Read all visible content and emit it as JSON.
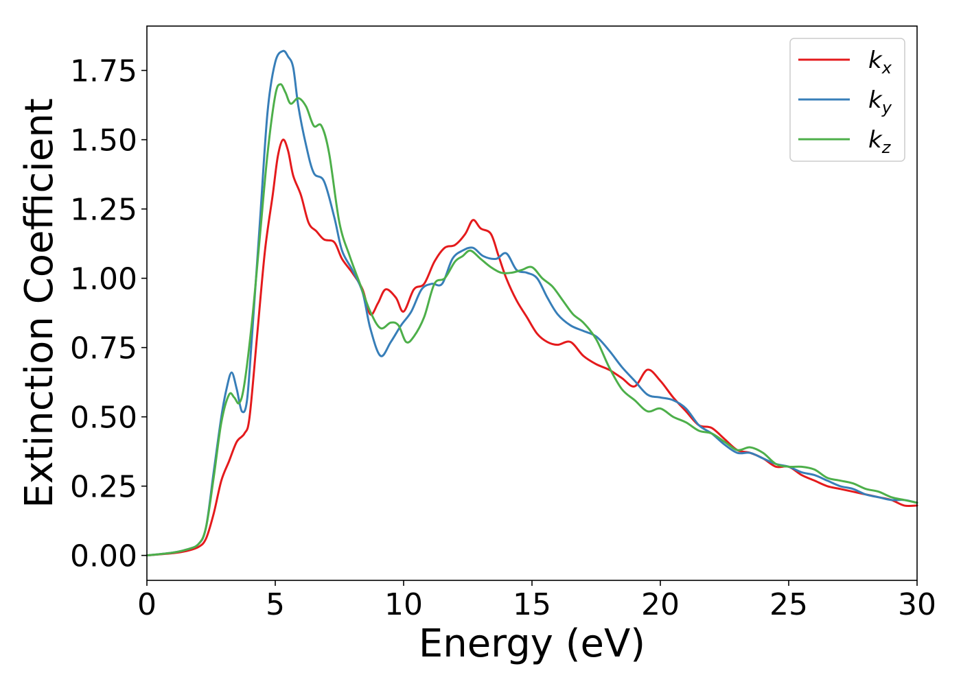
{
  "chart_data": {
    "type": "line",
    "title": "",
    "xlabel": "Energy (eV)",
    "ylabel": "Extinction Coefficient",
    "xlim": [
      0,
      30
    ],
    "ylim": [
      -0.09,
      1.91
    ],
    "xticks": [
      0,
      5,
      10,
      15,
      20,
      25,
      30
    ],
    "yticks": [
      0.0,
      0.25,
      0.5,
      0.75,
      1.0,
      1.25,
      1.5,
      1.75
    ],
    "grid": false,
    "legend_position": "top-right",
    "series": [
      {
        "name_base": "k",
        "name_sub": "x",
        "color": "#e41a1c",
        "points": [
          [
            0,
            0.0
          ],
          [
            1,
            0.008
          ],
          [
            1.5,
            0.015
          ],
          [
            2,
            0.03
          ],
          [
            2.3,
            0.06
          ],
          [
            2.6,
            0.15
          ],
          [
            2.9,
            0.27
          ],
          [
            3.2,
            0.34
          ],
          [
            3.5,
            0.41
          ],
          [
            3.8,
            0.44
          ],
          [
            4.0,
            0.5
          ],
          [
            4.3,
            0.8
          ],
          [
            4.6,
            1.1
          ],
          [
            4.9,
            1.3
          ],
          [
            5.1,
            1.44
          ],
          [
            5.3,
            1.5
          ],
          [
            5.5,
            1.46
          ],
          [
            5.7,
            1.37
          ],
          [
            6.0,
            1.3
          ],
          [
            6.3,
            1.2
          ],
          [
            6.6,
            1.17
          ],
          [
            6.9,
            1.14
          ],
          [
            7.3,
            1.13
          ],
          [
            7.6,
            1.07
          ],
          [
            8.0,
            1.02
          ],
          [
            8.4,
            0.96
          ],
          [
            8.7,
            0.87
          ],
          [
            9.0,
            0.91
          ],
          [
            9.3,
            0.96
          ],
          [
            9.7,
            0.93
          ],
          [
            10.0,
            0.88
          ],
          [
            10.4,
            0.96
          ],
          [
            10.8,
            0.98
          ],
          [
            11.2,
            1.06
          ],
          [
            11.6,
            1.11
          ],
          [
            12.0,
            1.12
          ],
          [
            12.4,
            1.16
          ],
          [
            12.7,
            1.21
          ],
          [
            13.0,
            1.18
          ],
          [
            13.4,
            1.16
          ],
          [
            13.7,
            1.08
          ],
          [
            14.0,
            1.0
          ],
          [
            14.4,
            0.92
          ],
          [
            14.8,
            0.86
          ],
          [
            15.2,
            0.8
          ],
          [
            15.6,
            0.77
          ],
          [
            16.0,
            0.76
          ],
          [
            16.5,
            0.77
          ],
          [
            17.0,
            0.72
          ],
          [
            17.5,
            0.69
          ],
          [
            18.0,
            0.67
          ],
          [
            18.5,
            0.64
          ],
          [
            19.0,
            0.61
          ],
          [
            19.5,
            0.67
          ],
          [
            20.0,
            0.63
          ],
          [
            20.5,
            0.57
          ],
          [
            21.0,
            0.52
          ],
          [
            21.5,
            0.47
          ],
          [
            22.0,
            0.46
          ],
          [
            22.5,
            0.42
          ],
          [
            23.0,
            0.38
          ],
          [
            23.5,
            0.37
          ],
          [
            24.0,
            0.35
          ],
          [
            24.5,
            0.32
          ],
          [
            25.0,
            0.32
          ],
          [
            25.5,
            0.29
          ],
          [
            26.0,
            0.27
          ],
          [
            26.5,
            0.25
          ],
          [
            27.0,
            0.24
          ],
          [
            27.5,
            0.23
          ],
          [
            28.0,
            0.22
          ],
          [
            28.5,
            0.21
          ],
          [
            29.0,
            0.2
          ],
          [
            29.5,
            0.18
          ],
          [
            30.0,
            0.18
          ]
        ]
      },
      {
        "name_base": "k",
        "name_sub": "y",
        "color": "#377eb8",
        "points": [
          [
            0,
            0.0
          ],
          [
            1,
            0.01
          ],
          [
            1.5,
            0.02
          ],
          [
            2,
            0.04
          ],
          [
            2.3,
            0.1
          ],
          [
            2.6,
            0.3
          ],
          [
            2.9,
            0.5
          ],
          [
            3.1,
            0.6
          ],
          [
            3.3,
            0.66
          ],
          [
            3.5,
            0.6
          ],
          [
            3.7,
            0.52
          ],
          [
            3.9,
            0.56
          ],
          [
            4.1,
            0.8
          ],
          [
            4.4,
            1.2
          ],
          [
            4.7,
            1.6
          ],
          [
            5.0,
            1.78
          ],
          [
            5.3,
            1.82
          ],
          [
            5.5,
            1.8
          ],
          [
            5.7,
            1.76
          ],
          [
            5.9,
            1.62
          ],
          [
            6.2,
            1.48
          ],
          [
            6.5,
            1.38
          ],
          [
            6.9,
            1.35
          ],
          [
            7.3,
            1.22
          ],
          [
            7.6,
            1.1
          ],
          [
            8.0,
            1.03
          ],
          [
            8.4,
            0.95
          ],
          [
            8.7,
            0.82
          ],
          [
            9.1,
            0.72
          ],
          [
            9.5,
            0.77
          ],
          [
            9.9,
            0.83
          ],
          [
            10.3,
            0.88
          ],
          [
            10.7,
            0.96
          ],
          [
            11.1,
            0.98
          ],
          [
            11.5,
            0.98
          ],
          [
            11.9,
            1.07
          ],
          [
            12.3,
            1.1
          ],
          [
            12.7,
            1.11
          ],
          [
            13.1,
            1.08
          ],
          [
            13.6,
            1.07
          ],
          [
            14.0,
            1.09
          ],
          [
            14.4,
            1.03
          ],
          [
            14.8,
            1.02
          ],
          [
            15.2,
            1.0
          ],
          [
            15.6,
            0.93
          ],
          [
            16.0,
            0.87
          ],
          [
            16.5,
            0.83
          ],
          [
            17.0,
            0.81
          ],
          [
            17.5,
            0.79
          ],
          [
            18.0,
            0.74
          ],
          [
            18.5,
            0.68
          ],
          [
            19.0,
            0.63
          ],
          [
            19.5,
            0.58
          ],
          [
            20.0,
            0.57
          ],
          [
            20.5,
            0.56
          ],
          [
            21.0,
            0.53
          ],
          [
            21.5,
            0.47
          ],
          [
            22.0,
            0.44
          ],
          [
            22.5,
            0.4
          ],
          [
            23.0,
            0.37
          ],
          [
            23.5,
            0.37
          ],
          [
            24.0,
            0.35
          ],
          [
            24.5,
            0.33
          ],
          [
            25.0,
            0.32
          ],
          [
            25.5,
            0.3
          ],
          [
            26.0,
            0.29
          ],
          [
            26.5,
            0.27
          ],
          [
            27.0,
            0.25
          ],
          [
            27.5,
            0.24
          ],
          [
            28.0,
            0.22
          ],
          [
            28.5,
            0.21
          ],
          [
            29.0,
            0.2
          ],
          [
            29.5,
            0.2
          ],
          [
            30.0,
            0.19
          ]
        ]
      },
      {
        "name_base": "k",
        "name_sub": "z",
        "color": "#4daf4a",
        "points": [
          [
            0,
            0.0
          ],
          [
            1,
            0.01
          ],
          [
            1.5,
            0.02
          ],
          [
            2,
            0.04
          ],
          [
            2.3,
            0.1
          ],
          [
            2.6,
            0.28
          ],
          [
            2.9,
            0.48
          ],
          [
            3.2,
            0.58
          ],
          [
            3.4,
            0.57
          ],
          [
            3.6,
            0.55
          ],
          [
            3.8,
            0.62
          ],
          [
            4.1,
            0.85
          ],
          [
            4.4,
            1.15
          ],
          [
            4.7,
            1.45
          ],
          [
            5.0,
            1.66
          ],
          [
            5.2,
            1.7
          ],
          [
            5.4,
            1.67
          ],
          [
            5.6,
            1.63
          ],
          [
            5.9,
            1.65
          ],
          [
            6.2,
            1.62
          ],
          [
            6.5,
            1.55
          ],
          [
            6.8,
            1.55
          ],
          [
            7.1,
            1.45
          ],
          [
            7.5,
            1.2
          ],
          [
            7.9,
            1.08
          ],
          [
            8.3,
            0.98
          ],
          [
            8.7,
            0.88
          ],
          [
            9.1,
            0.82
          ],
          [
            9.5,
            0.84
          ],
          [
            9.8,
            0.83
          ],
          [
            10.1,
            0.77
          ],
          [
            10.4,
            0.79
          ],
          [
            10.8,
            0.86
          ],
          [
            11.2,
            0.98
          ],
          [
            11.6,
            1.0
          ],
          [
            12.0,
            1.06
          ],
          [
            12.3,
            1.08
          ],
          [
            12.6,
            1.1
          ],
          [
            13.0,
            1.07
          ],
          [
            13.4,
            1.04
          ],
          [
            13.8,
            1.02
          ],
          [
            14.2,
            1.02
          ],
          [
            14.6,
            1.03
          ],
          [
            15.0,
            1.04
          ],
          [
            15.4,
            1.0
          ],
          [
            15.8,
            0.97
          ],
          [
            16.2,
            0.92
          ],
          [
            16.6,
            0.87
          ],
          [
            17.0,
            0.84
          ],
          [
            17.5,
            0.78
          ],
          [
            18.0,
            0.68
          ],
          [
            18.5,
            0.6
          ],
          [
            19.0,
            0.56
          ],
          [
            19.5,
            0.52
          ],
          [
            20.0,
            0.53
          ],
          [
            20.5,
            0.5
          ],
          [
            21.0,
            0.48
          ],
          [
            21.5,
            0.45
          ],
          [
            22.0,
            0.44
          ],
          [
            22.5,
            0.41
          ],
          [
            23.0,
            0.38
          ],
          [
            23.5,
            0.39
          ],
          [
            24.0,
            0.37
          ],
          [
            24.5,
            0.33
          ],
          [
            25.0,
            0.32
          ],
          [
            25.5,
            0.32
          ],
          [
            26.0,
            0.31
          ],
          [
            26.5,
            0.28
          ],
          [
            27.0,
            0.27
          ],
          [
            27.5,
            0.26
          ],
          [
            28.0,
            0.24
          ],
          [
            28.5,
            0.23
          ],
          [
            29.0,
            0.21
          ],
          [
            29.5,
            0.2
          ],
          [
            30.0,
            0.19
          ]
        ]
      }
    ]
  }
}
